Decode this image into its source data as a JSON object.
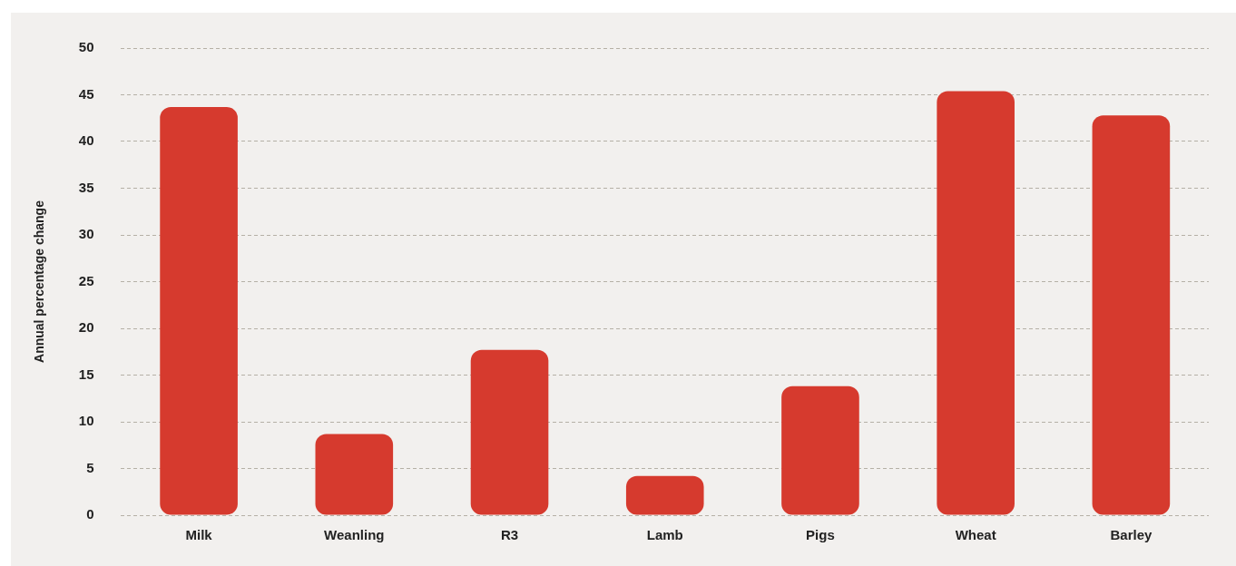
{
  "chart_data": {
    "type": "bar",
    "ylabel": "Annual percentage change",
    "categories": [
      "Milk",
      "Weanling",
      "R3",
      "Lamb",
      "Pigs",
      "Wheat",
      "Barley"
    ],
    "values": [
      43.7,
      8.7,
      17.7,
      4.2,
      13.8,
      45.4,
      42.8
    ],
    "colors": [
      "#d63a2e",
      "#d63a2e",
      "#d63a2e",
      "#d63a2e",
      "#d63a2e",
      "#d63a2e",
      "#d63a2e"
    ],
    "ylim": [
      0,
      50
    ],
    "yticks": [
      0,
      5,
      10,
      15,
      20,
      25,
      30,
      35,
      40,
      45,
      50
    ],
    "grid": "y",
    "legend": false
  }
}
